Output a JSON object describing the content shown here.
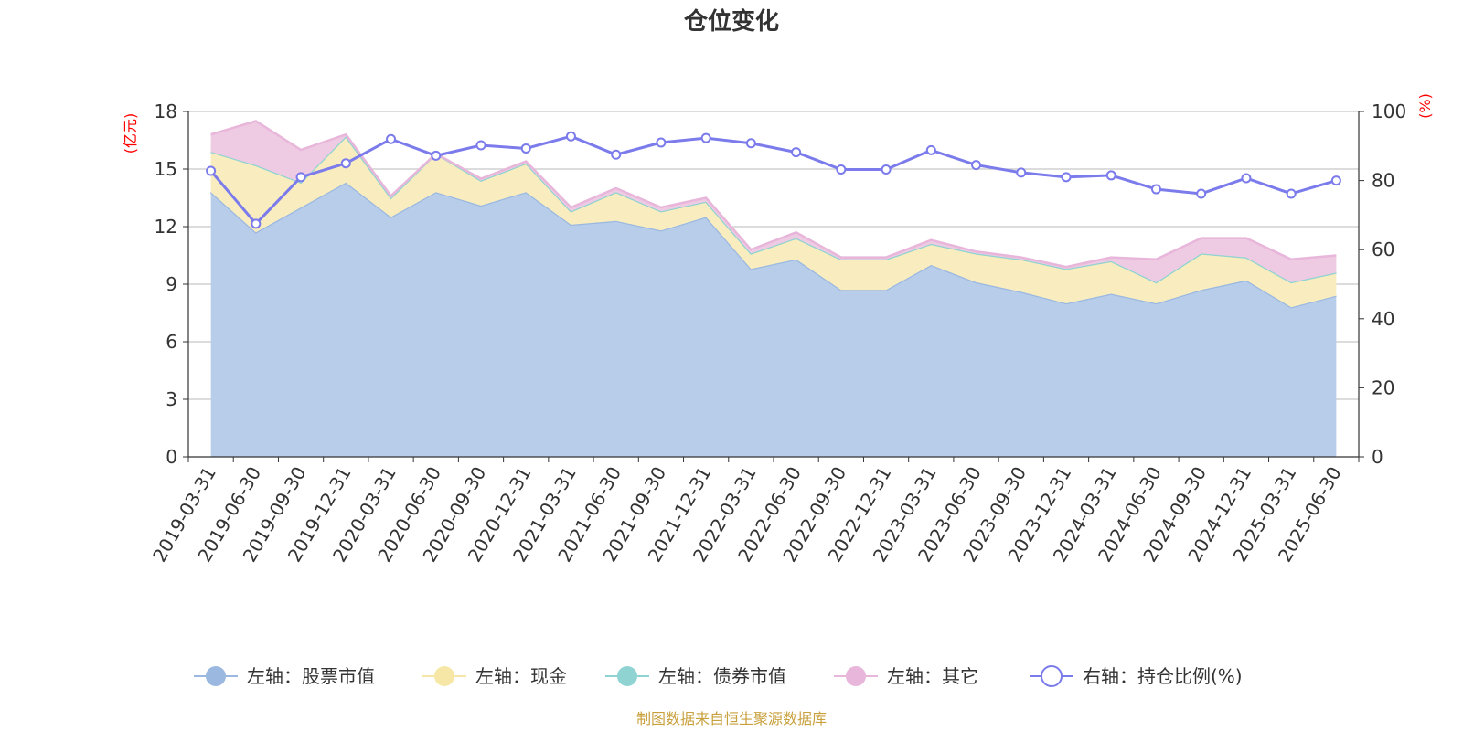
{
  "chart_data": {
    "type": "area",
    "title": "仓位变化",
    "categories": [
      "2019-03-31",
      "2019-06-30",
      "2019-09-30",
      "2019-12-31",
      "2020-03-31",
      "2020-06-30",
      "2020-09-30",
      "2020-12-31",
      "2021-03-31",
      "2021-06-30",
      "2021-09-30",
      "2021-12-31",
      "2022-03-31",
      "2022-06-30",
      "2022-09-30",
      "2022-12-31",
      "2023-03-31",
      "2023-06-30",
      "2023-09-30",
      "2023-12-31",
      "2024-03-31",
      "2024-06-30",
      "2024-09-30",
      "2024-12-31",
      "2025-03-31",
      "2025-06-30"
    ],
    "y_left": {
      "unit": "(亿元)",
      "min": 0,
      "max": 18,
      "ticks": [
        0,
        3,
        6,
        9,
        12,
        15,
        18
      ]
    },
    "y_right": {
      "unit": "(%)",
      "min": 0,
      "max": 100,
      "ticks": [
        0,
        20,
        40,
        60,
        80,
        100
      ]
    },
    "grid": true,
    "legend_position": "bottom",
    "series": [
      {
        "name": "左轴：股票市值",
        "axis": "left",
        "stack": true,
        "color": "#9ab8e0",
        "fill": "#b8cdea",
        "values": [
          13.8,
          11.7,
          13.0,
          14.3,
          12.5,
          13.8,
          13.1,
          13.8,
          12.1,
          12.3,
          11.8,
          12.5,
          9.8,
          10.3,
          8.7,
          8.7,
          10.0,
          9.1,
          8.6,
          8.0,
          8.5,
          8.0,
          8.7,
          9.2,
          7.8,
          8.4
        ]
      },
      {
        "name": "左轴：现金",
        "axis": "left",
        "stack": true,
        "color": "#f6e7a6",
        "fill": "#f9edc0",
        "values": [
          2.1,
          3.5,
          1.3,
          2.4,
          1.0,
          2.0,
          1.3,
          1.5,
          0.7,
          1.5,
          1.0,
          0.8,
          0.8,
          1.1,
          1.6,
          1.6,
          1.1,
          1.5,
          1.7,
          1.8,
          1.7,
          1.1,
          1.9,
          1.2,
          1.3,
          1.2
        ]
      },
      {
        "name": "左轴：债券市值",
        "axis": "left",
        "stack": true,
        "color": "#8fd3d3",
        "fill": "#b9e4e4",
        "values": [
          0,
          0,
          0,
          0,
          0,
          0,
          0,
          0,
          0,
          0,
          0,
          0,
          0,
          0,
          0,
          0,
          0,
          0,
          0,
          0,
          0,
          0,
          0,
          0,
          0,
          0
        ]
      },
      {
        "name": "左轴：其它",
        "axis": "left",
        "stack": true,
        "color": "#e8b6da",
        "fill": "#eecbe3",
        "values": [
          0.9,
          2.3,
          1.7,
          0.1,
          0.1,
          0.0,
          0.1,
          0.1,
          0.2,
          0.2,
          0.2,
          0.2,
          0.2,
          0.3,
          0.1,
          0.1,
          0.2,
          0.1,
          0.1,
          0.1,
          0.2,
          1.2,
          0.8,
          1.0,
          1.2,
          0.9
        ]
      },
      {
        "name": "右轴：持仓比例(%)",
        "axis": "right",
        "type": "line",
        "color": "#7b7bec",
        "values": [
          82.8,
          67.5,
          81.0,
          85.0,
          92.0,
          87.2,
          90.2,
          89.3,
          92.8,
          87.5,
          91.0,
          92.3,
          90.8,
          88.2,
          83.2,
          83.2,
          88.8,
          84.5,
          82.3,
          81.0,
          81.5,
          77.5,
          76.2,
          80.7,
          76.2,
          80.0
        ]
      }
    ],
    "source": "制图数据来自恒生聚源数据库"
  }
}
